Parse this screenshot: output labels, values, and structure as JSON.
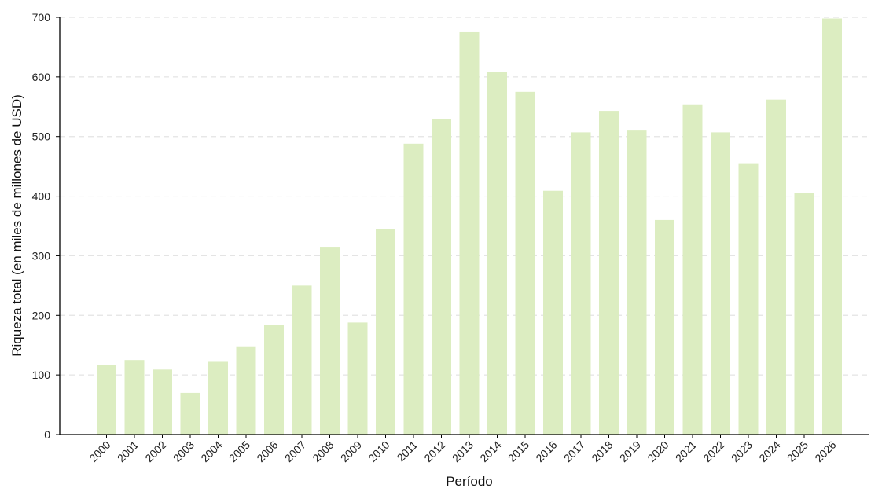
{
  "chart_data": {
    "type": "bar",
    "title": "",
    "xlabel": "Período",
    "ylabel": "Riqueza total (en miles de millones de USD)",
    "categories": [
      "2000",
      "2001",
      "2002",
      "2003",
      "2004",
      "2005",
      "2006",
      "2007",
      "2008",
      "2009",
      "2010",
      "2011",
      "2012",
      "2013",
      "2014",
      "2015",
      "2016",
      "2017",
      "2018",
      "2019",
      "2020",
      "2021",
      "2022",
      "2023",
      "2024",
      "2025",
      "2026"
    ],
    "values": [
      117,
      125,
      109,
      70,
      122,
      148,
      184,
      250,
      315,
      188,
      345,
      488,
      529,
      675,
      608,
      575,
      409,
      507,
      543,
      510,
      360,
      554,
      507,
      454,
      562,
      405,
      698
    ],
    "ylim": [
      0,
      700
    ],
    "yticks": [
      0,
      100,
      200,
      300,
      400,
      500,
      600,
      700
    ],
    "grid": true,
    "grid_style": "dashed horizontal",
    "bar_color": "#dcedc1",
    "legend": "none"
  }
}
